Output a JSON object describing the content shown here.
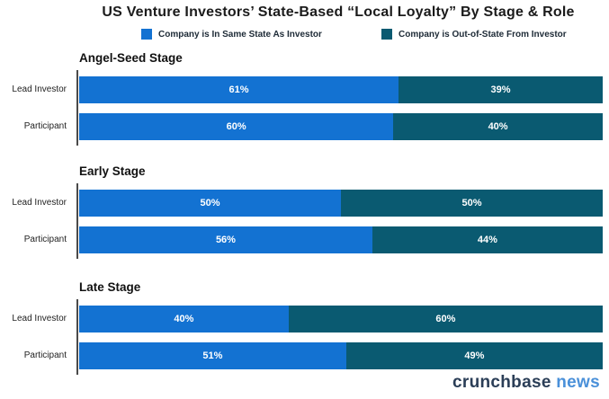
{
  "title": "US Venture Investors’ State-Based “Local Loyalty” By Stage & Role",
  "footer": {
    "brand": "crunchbase",
    "brand_suffix": "news",
    "brand_color": "#2b3e57",
    "suffix_color": "#4a90d9"
  },
  "chart_data": {
    "type": "bar",
    "orientation": "horizontal",
    "stacked": true,
    "unit": "%",
    "xlim": [
      0,
      100
    ],
    "grid": false,
    "legend_position": "top",
    "title": "US Venture Investors’ State-Based “Local Loyalty” By Stage & Role",
    "series": [
      {
        "name": "Company is In Same State As Investor",
        "color": "#1372d2"
      },
      {
        "name": "Company is Out-of-State From Investor",
        "color": "#0a5a71"
      }
    ],
    "groups": [
      {
        "title": "Angel-Seed Stage",
        "rows": [
          {
            "label": "Lead Investor",
            "in_state": 61,
            "out_of_state": 39
          },
          {
            "label": "Participant",
            "in_state": 60,
            "out_of_state": 40
          }
        ]
      },
      {
        "title": "Early Stage",
        "rows": [
          {
            "label": "Lead Investor",
            "in_state": 50,
            "out_of_state": 50
          },
          {
            "label": "Participant",
            "in_state": 56,
            "out_of_state": 44
          }
        ]
      },
      {
        "title": "Late Stage",
        "rows": [
          {
            "label": "Lead Investor",
            "in_state": 40,
            "out_of_state": 60
          },
          {
            "label": "Participant",
            "in_state": 51,
            "out_of_state": 49
          }
        ]
      }
    ]
  }
}
